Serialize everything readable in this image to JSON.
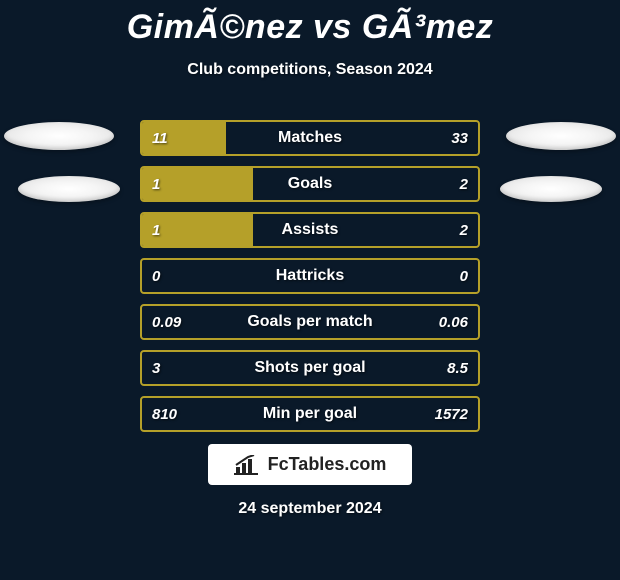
{
  "title": "GimÃ©nez vs GÃ³mez",
  "subtitle": "Club competitions, Season 2024",
  "colors": {
    "background": "#0a1929",
    "left_accent": "#b5a029",
    "right_accent": "#0a1929",
    "border_neutral": "#b5a029",
    "text": "#ffffff"
  },
  "rows": [
    {
      "label": "Matches",
      "left": "11",
      "right": "33",
      "left_pct": 25,
      "right_pct": 0,
      "border": "#b5a029",
      "left_fill": "#b5a029",
      "right_fill": "#0a1929"
    },
    {
      "label": "Goals",
      "left": "1",
      "right": "2",
      "left_pct": 33,
      "right_pct": 0,
      "border": "#b5a029",
      "left_fill": "#b5a029",
      "right_fill": "#0a1929"
    },
    {
      "label": "Assists",
      "left": "1",
      "right": "2",
      "left_pct": 33,
      "right_pct": 0,
      "border": "#b5a029",
      "left_fill": "#b5a029",
      "right_fill": "#0a1929"
    },
    {
      "label": "Hattricks",
      "left": "0",
      "right": "0",
      "left_pct": 0,
      "right_pct": 0,
      "border": "#b5a029",
      "left_fill": "#b5a029",
      "right_fill": "#0a1929"
    },
    {
      "label": "Goals per match",
      "left": "0.09",
      "right": "0.06",
      "left_pct": 0,
      "right_pct": 0,
      "border": "#b5a029",
      "left_fill": "#b5a029",
      "right_fill": "#0a1929"
    },
    {
      "label": "Shots per goal",
      "left": "3",
      "right": "8.5",
      "left_pct": 0,
      "right_pct": 0,
      "border": "#b5a029",
      "left_fill": "#b5a029",
      "right_fill": "#0a1929"
    },
    {
      "label": "Min per goal",
      "left": "810",
      "right": "1572",
      "left_pct": 0,
      "right_pct": 0,
      "border": "#b5a029",
      "left_fill": "#b5a029",
      "right_fill": "#0a1929"
    }
  ],
  "logo_text": "FcTables.com",
  "date_text": "24 september 2024"
}
